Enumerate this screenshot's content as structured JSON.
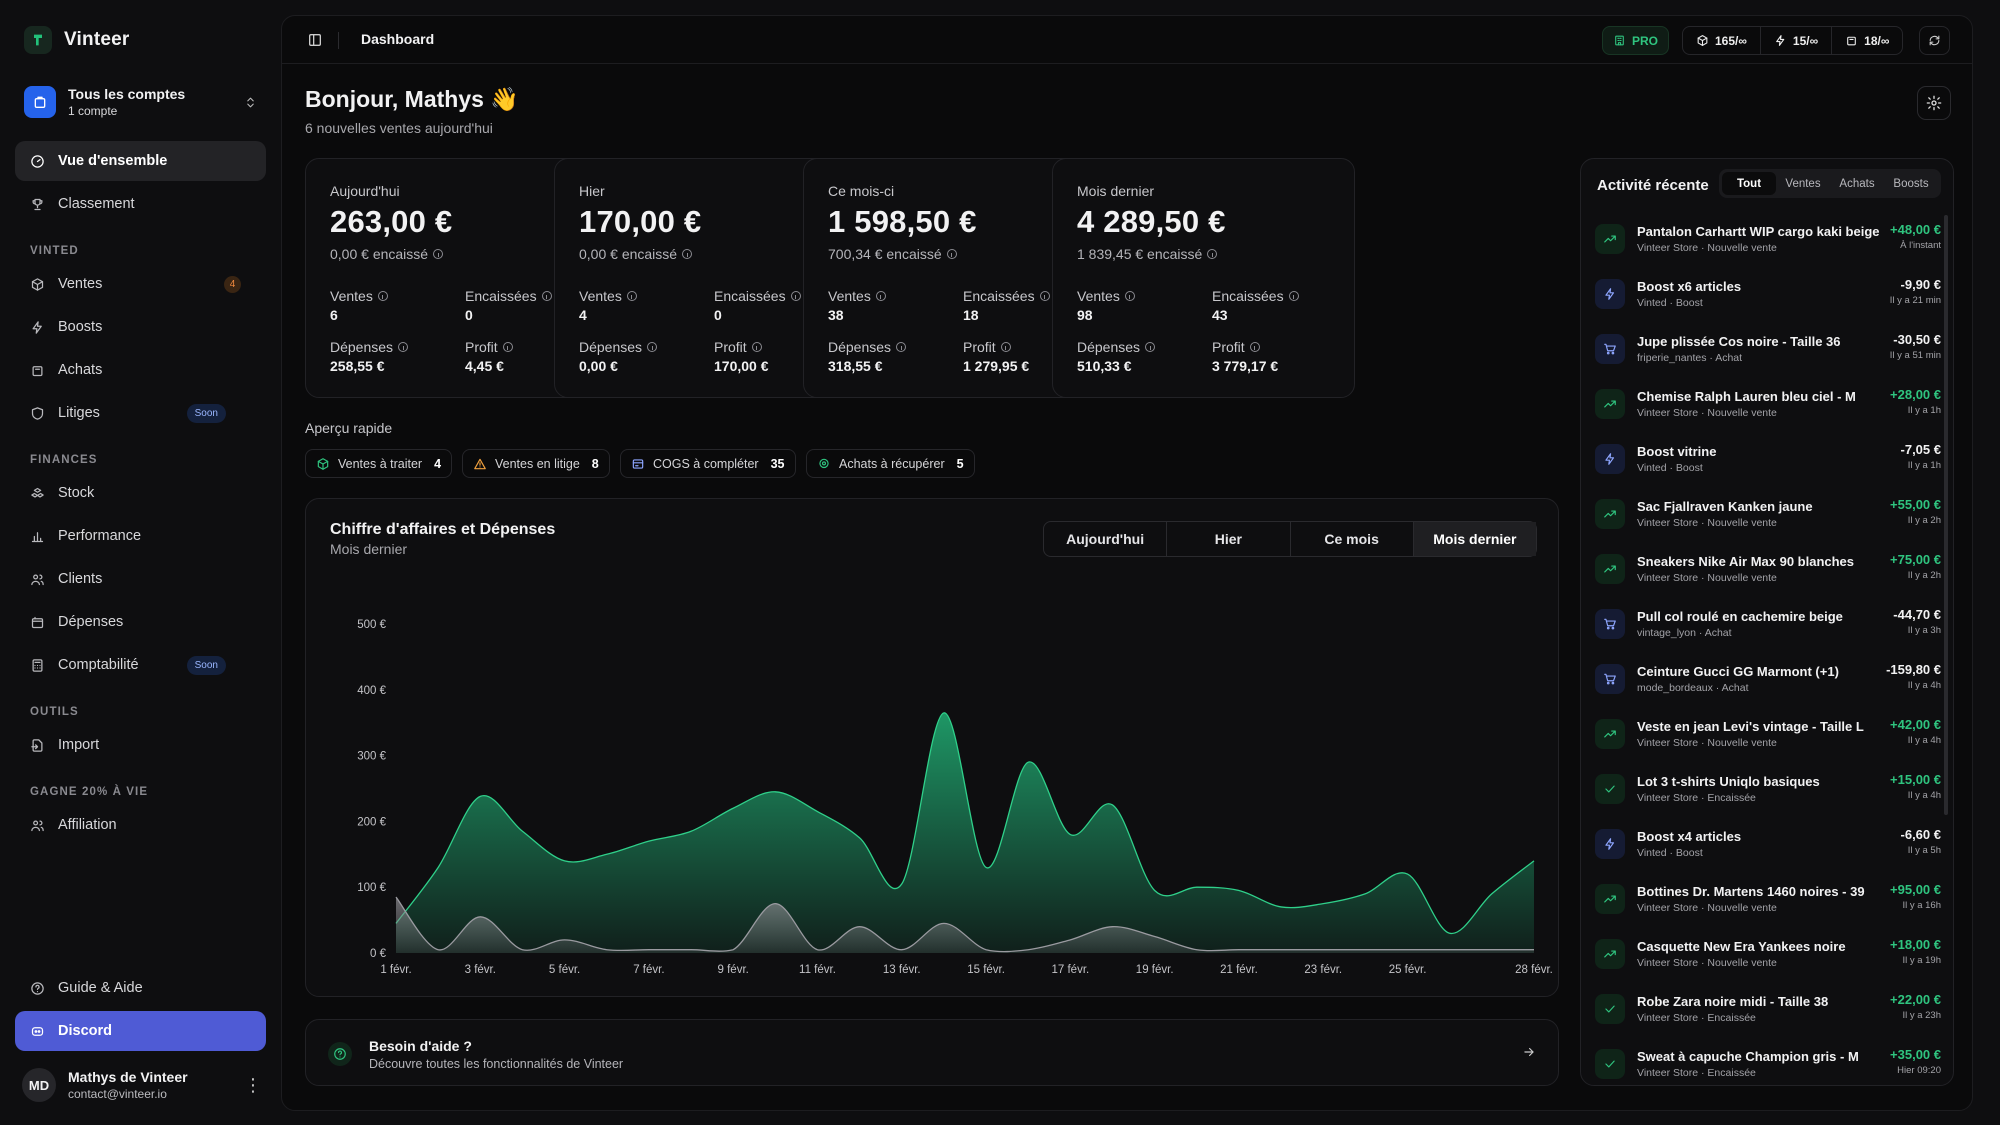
{
  "app": {
    "name": "Vinteer"
  },
  "account": {
    "title": "Tous les comptes",
    "subtitle": "1 compte"
  },
  "nav": {
    "top": [
      {
        "label": "Vue d'ensemble",
        "icon": "dashboard-icon",
        "active": true
      },
      {
        "label": "Classement",
        "icon": "trophy-icon"
      }
    ],
    "sections": [
      {
        "title": "VINTED",
        "items": [
          {
            "label": "Ventes",
            "icon": "package-icon",
            "badge": "4"
          },
          {
            "label": "Boosts",
            "icon": "bolt-icon"
          },
          {
            "label": "Achats",
            "icon": "bag-icon"
          },
          {
            "label": "Litiges",
            "icon": "shield-icon",
            "soon": "Soon"
          }
        ]
      },
      {
        "title": "FINANCES",
        "items": [
          {
            "label": "Stock",
            "icon": "boxes-icon"
          },
          {
            "label": "Performance",
            "icon": "bar-chart-icon"
          },
          {
            "label": "Clients",
            "icon": "users-icon"
          },
          {
            "label": "Dépenses",
            "icon": "wallet-icon"
          },
          {
            "label": "Comptabilité",
            "icon": "calculator-icon",
            "soon": "Soon"
          }
        ]
      },
      {
        "title": "OUTILS",
        "items": [
          {
            "label": "Import",
            "icon": "import-icon"
          }
        ]
      },
      {
        "title": "GAGNE 20% À VIE",
        "items": [
          {
            "label": "Affiliation",
            "icon": "users-icon"
          }
        ]
      }
    ],
    "bottom": [
      {
        "label": "Guide & Aide",
        "icon": "help-icon"
      },
      {
        "label": "Discord",
        "icon": "discord-icon"
      }
    ]
  },
  "user": {
    "initials": "MD",
    "name": "Mathys de Vinteer",
    "email": "contact@vinteer.io"
  },
  "topbar": {
    "title": "Dashboard",
    "pro": "PRO",
    "quotas": [
      {
        "icon": "package-icon",
        "value": "165/∞"
      },
      {
        "icon": "bolt-icon",
        "value": "15/∞"
      },
      {
        "icon": "bag-icon",
        "value": "18/∞"
      }
    ]
  },
  "greeting": {
    "title": "Bonjour, Mathys",
    "emoji": "👋",
    "subtitle": "6 nouvelles ventes aujourd'hui"
  },
  "kpis": [
    {
      "label": "Aujourd'hui",
      "value": "263,00 €",
      "encaisse": "0,00 € encaissé",
      "stats": [
        {
          "label": "Ventes",
          "value": "6"
        },
        {
          "label": "Encaissées",
          "value": "0"
        },
        {
          "label": "Dépenses",
          "value": "258,55 €"
        },
        {
          "label": "Profit",
          "value": "4,45 €"
        }
      ]
    },
    {
      "label": "Hier",
      "value": "170,00 €",
      "encaisse": "0,00 € encaissé",
      "stats": [
        {
          "label": "Ventes",
          "value": "4"
        },
        {
          "label": "Encaissées",
          "value": "0"
        },
        {
          "label": "Dépenses",
          "value": "0,00 €"
        },
        {
          "label": "Profit",
          "value": "170,00 €"
        }
      ]
    },
    {
      "label": "Ce mois-ci",
      "value": "1 598,50 €",
      "encaisse": "700,34 € encaissé",
      "stats": [
        {
          "label": "Ventes",
          "value": "38"
        },
        {
          "label": "Encaissées",
          "value": "18"
        },
        {
          "label": "Dépenses",
          "value": "318,55 €"
        },
        {
          "label": "Profit",
          "value": "1 279,95 €"
        }
      ]
    },
    {
      "label": "Mois dernier",
      "value": "4 289,50 €",
      "encaisse": "1 839,45 € encaissé",
      "stats": [
        {
          "label": "Ventes",
          "value": "98"
        },
        {
          "label": "Encaissées",
          "value": "43"
        },
        {
          "label": "Dépenses",
          "value": "510,33 €"
        },
        {
          "label": "Profit",
          "value": "3 779,17 €"
        }
      ]
    }
  ],
  "apercu": {
    "title": "Aperçu rapide",
    "items": [
      {
        "label": "Ventes à traiter",
        "count": "4",
        "icon": "package-icon",
        "color": "#2fc47f"
      },
      {
        "label": "Ventes en litige",
        "count": "8",
        "icon": "warning-icon",
        "color": "#f0a03e"
      },
      {
        "label": "COGS à compléter",
        "count": "35",
        "icon": "receipt-icon",
        "color": "#8ea6ff"
      },
      {
        "label": "Achats à récupérer",
        "count": "5",
        "icon": "pin-icon",
        "color": "#2fc47f"
      }
    ]
  },
  "chart": {
    "title": "Chiffre d'affaires et Dépenses",
    "subtitle": "Mois dernier",
    "ranges": [
      "Aujourd'hui",
      "Hier",
      "Ce mois",
      "Mois dernier"
    ],
    "active_range": "Mois dernier"
  },
  "chart_data": {
    "type": "area",
    "x": [
      "1 févr.",
      "2 févr.",
      "3 févr.",
      "4 févr.",
      "5 févr.",
      "6 févr.",
      "7 févr.",
      "8 févr.",
      "9 févr.",
      "10 févr.",
      "11 févr.",
      "12 févr.",
      "13 févr.",
      "14 févr.",
      "15 févr.",
      "16 févr.",
      "17 févr.",
      "18 févr.",
      "19 févr.",
      "20 févr.",
      "21 févr.",
      "22 févr.",
      "23 févr.",
      "24 févr.",
      "25 févr.",
      "26 févr.",
      "27 févr.",
      "28 févr."
    ],
    "xticks": [
      "1 févr.",
      "3 févr.",
      "5 févr.",
      "7 févr.",
      "9 févr.",
      "11 févr.",
      "13 févr.",
      "15 févr.",
      "17 févr.",
      "19 févr.",
      "21 févr.",
      "23 févr.",
      "25 févr.",
      "28 févr."
    ],
    "yticks": [
      "0 €",
      "100 €",
      "200 €",
      "300 €",
      "400 €",
      "500 €"
    ],
    "ylim": [
      0,
      500
    ],
    "series": [
      {
        "values": [
          45,
          130,
          238,
          185,
          140,
          150,
          170,
          185,
          220,
          245,
          215,
          175,
          105,
          365,
          130,
          290,
          180,
          225,
          95,
          100,
          95,
          70,
          75,
          90,
          120,
          30,
          90,
          140
        ],
        "color": "#1f9e6a"
      },
      {
        "values": [
          85,
          5,
          55,
          5,
          20,
          5,
          5,
          5,
          5,
          75,
          5,
          40,
          5,
          45,
          5,
          5,
          20,
          40,
          25,
          5,
          5,
          5,
          5,
          5,
          5,
          5,
          5,
          5
        ],
        "color": "#8a8a8f"
      }
    ]
  },
  "help": {
    "title": "Besoin d'aide ?",
    "subtitle": "Découvre toutes les fonctionnalités de Vinteer"
  },
  "activity": {
    "title": "Activité récente",
    "tabs": [
      "Tout",
      "Ventes",
      "Achats",
      "Boosts"
    ],
    "active_tab": "Tout",
    "items": [
      {
        "type": "sale",
        "name": "Pantalon Carhartt WIP cargo kaki beige",
        "meta": "Vinteer Store · Nouvelle vente",
        "amount": "+48,00 €",
        "time": "À l'instant"
      },
      {
        "type": "boost",
        "name": "Boost x6 articles",
        "meta": "Vinted · Boost",
        "amount": "-9,90 €",
        "time": "Il y a 21 min"
      },
      {
        "type": "buy",
        "name": "Jupe plissée Cos noire - Taille 36",
        "meta": "friperie_nantes · Achat",
        "amount": "-30,50 €",
        "time": "Il y a 51 min"
      },
      {
        "type": "sale",
        "name": "Chemise Ralph Lauren bleu ciel - M",
        "meta": "Vinteer Store · Nouvelle vente",
        "amount": "+28,00 €",
        "time": "Il y a 1h"
      },
      {
        "type": "boost",
        "name": "Boost vitrine",
        "meta": "Vinted · Boost",
        "amount": "-7,05 €",
        "time": "Il y a 1h"
      },
      {
        "type": "sale",
        "name": "Sac Fjallraven Kanken jaune",
        "meta": "Vinteer Store · Nouvelle vente",
        "amount": "+55,00 €",
        "time": "Il y a 2h"
      },
      {
        "type": "sale",
        "name": "Sneakers Nike Air Max 90 blanches",
        "meta": "Vinteer Store · Nouvelle vente",
        "amount": "+75,00 €",
        "time": "Il y a 2h"
      },
      {
        "type": "buy",
        "name": "Pull col roulé en cachemire beige",
        "meta": "vintage_lyon · Achat",
        "amount": "-44,70 €",
        "time": "Il y a 3h"
      },
      {
        "type": "buy",
        "name": "Ceinture Gucci GG Marmont (+1)",
        "meta": "mode_bordeaux · Achat",
        "amount": "-159,80 €",
        "time": "Il y a 4h"
      },
      {
        "type": "sale",
        "name": "Veste en jean Levi's vintage - Taille L",
        "meta": "Vinteer Store · Nouvelle vente",
        "amount": "+42,00 €",
        "time": "Il y a 4h"
      },
      {
        "type": "enc",
        "name": "Lot 3 t-shirts Uniqlo basiques",
        "meta": "Vinteer Store · Encaissée",
        "amount": "+15,00 €",
        "time": "Il y a 4h"
      },
      {
        "type": "boost",
        "name": "Boost x4 articles",
        "meta": "Vinted · Boost",
        "amount": "-6,60 €",
        "time": "Il y a 5h"
      },
      {
        "type": "sale",
        "name": "Bottines Dr. Martens 1460 noires - 39",
        "meta": "Vinteer Store · Nouvelle vente",
        "amount": "+95,00 €",
        "time": "Il y a 16h"
      },
      {
        "type": "sale",
        "name": "Casquette New Era Yankees noire",
        "meta": "Vinteer Store · Nouvelle vente",
        "amount": "+18,00 €",
        "time": "Il y a 19h"
      },
      {
        "type": "enc",
        "name": "Robe Zara noire midi - Taille 38",
        "meta": "Vinteer Store · Encaissée",
        "amount": "+22,00 €",
        "time": "Il y a 23h"
      },
      {
        "type": "enc",
        "name": "Sweat à capuche Champion gris - M",
        "meta": "Vinteer Store · Encaissée",
        "amount": "+35,00 €",
        "time": "Hier 09:20"
      }
    ]
  }
}
